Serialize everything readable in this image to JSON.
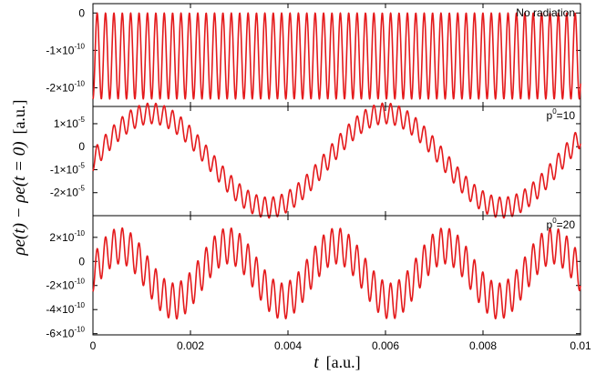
{
  "chart_data": [
    {
      "type": "line",
      "annotation": "No radiation",
      "xlim": [
        0,
        0.01
      ],
      "ylim": [
        -2.5e-10,
        2.5e-11
      ],
      "x_ticks": [
        0,
        0.002,
        0.004,
        0.006,
        0.008,
        0.01
      ],
      "y_ticks": [
        {
          "value": 0,
          "mant": "0",
          "exp": ""
        },
        {
          "value": -1e-10,
          "mant": "-1×10",
          "exp": "-10"
        },
        {
          "value": -2e-10,
          "mant": "-2×10",
          "exp": "-10"
        }
      ],
      "series": [
        {
          "color": "#e41a1c",
          "model": {
            "offset": -1.15e-10,
            "slow_amp": 0,
            "slow_period": 1,
            "fast_amp": 1.15e-10,
            "fast_period": 0.000172
          }
        }
      ]
    },
    {
      "type": "line",
      "annotation": "p",
      "annotation_sup": "0",
      "annotation_rest": "=10",
      "xlim": [
        0,
        0.01
      ],
      "ylim": [
        -3e-05,
        1.75e-05
      ],
      "x_ticks": [
        0,
        0.002,
        0.004,
        0.006,
        0.008,
        0.01
      ],
      "y_ticks": [
        {
          "value": 1e-05,
          "mant": "1×10",
          "exp": "-5"
        },
        {
          "value": 0,
          "mant": "0",
          "exp": ""
        },
        {
          "value": -1e-05,
          "mant": "-1×10",
          "exp": "-5"
        },
        {
          "value": -2e-05,
          "mant": "-2×10",
          "exp": "-5"
        }
      ],
      "series": [
        {
          "color": "#e41a1c",
          "model": {
            "offset": -6e-06,
            "slow_amp": 2.05e-05,
            "slow_period": 0.0048,
            "fast_amp": 4.5e-06,
            "fast_period": 0.000172
          }
        }
      ]
    },
    {
      "type": "line",
      "annotation": "p",
      "annotation_sup": "0",
      "annotation_rest": "=20",
      "xlim": [
        0,
        0.01
      ],
      "ylim": [
        -6.1e-10,
        3.8e-10
      ],
      "x_ticks": [
        0,
        0.002,
        0.004,
        0.006,
        0.008,
        0.01
      ],
      "y_ticks": [
        {
          "value": 2e-10,
          "mant": "2×10",
          "exp": "-10"
        },
        {
          "value": 0,
          "mant": "0",
          "exp": ""
        },
        {
          "value": -2e-10,
          "mant": "-2×10",
          "exp": "-10"
        },
        {
          "value": -4e-10,
          "mant": "-4×10",
          "exp": "-10"
        },
        {
          "value": -6e-10,
          "mant": "-6×10",
          "exp": "-10"
        }
      ],
      "series": [
        {
          "color": "#e41a1c",
          "model": {
            "offset": -1e-10,
            "slow_amp": 2.3e-10,
            "slow_period": 0.00222,
            "fast_amp": 1.5e-10,
            "fast_period": 0.000172
          }
        }
      ]
    }
  ],
  "x_tick_labels": [
    "0",
    "0.002",
    "0.004",
    "0.006",
    "0.008",
    "0.01"
  ],
  "xlabel_math": "t",
  "xlabel_unit": "[a.u.]",
  "ylabel_math": "ρe(t) − ρe(t = 0)",
  "ylabel_unit": "[a.u.]"
}
